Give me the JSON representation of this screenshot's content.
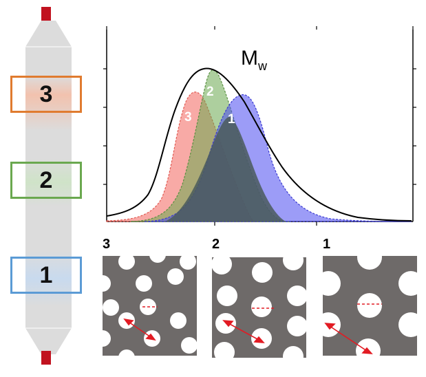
{
  "column": {
    "zones": [
      {
        "label": "3",
        "color": "#e07b2f",
        "fill": "#f4cdbb"
      },
      {
        "label": "2",
        "color": "#6aa84f",
        "fill": "#d4e6cf"
      },
      {
        "label": "1",
        "color": "#5b9bd5",
        "fill": "#cfdeee"
      }
    ],
    "body_color": "#dcdcdc",
    "cap_color": "#c1121f"
  },
  "chart": {
    "title": "M",
    "title_subscript": "w",
    "curve_labels": [
      "3",
      "2",
      "1"
    ],
    "colors": {
      "region3": "#f4726b",
      "region2": "#6aa84f",
      "region1": "#4a4af0",
      "overlap": "#4a5a5c",
      "total": "#000000"
    }
  },
  "panels": [
    {
      "label": "3"
    },
    {
      "label": "2"
    },
    {
      "label": "1"
    }
  ]
}
